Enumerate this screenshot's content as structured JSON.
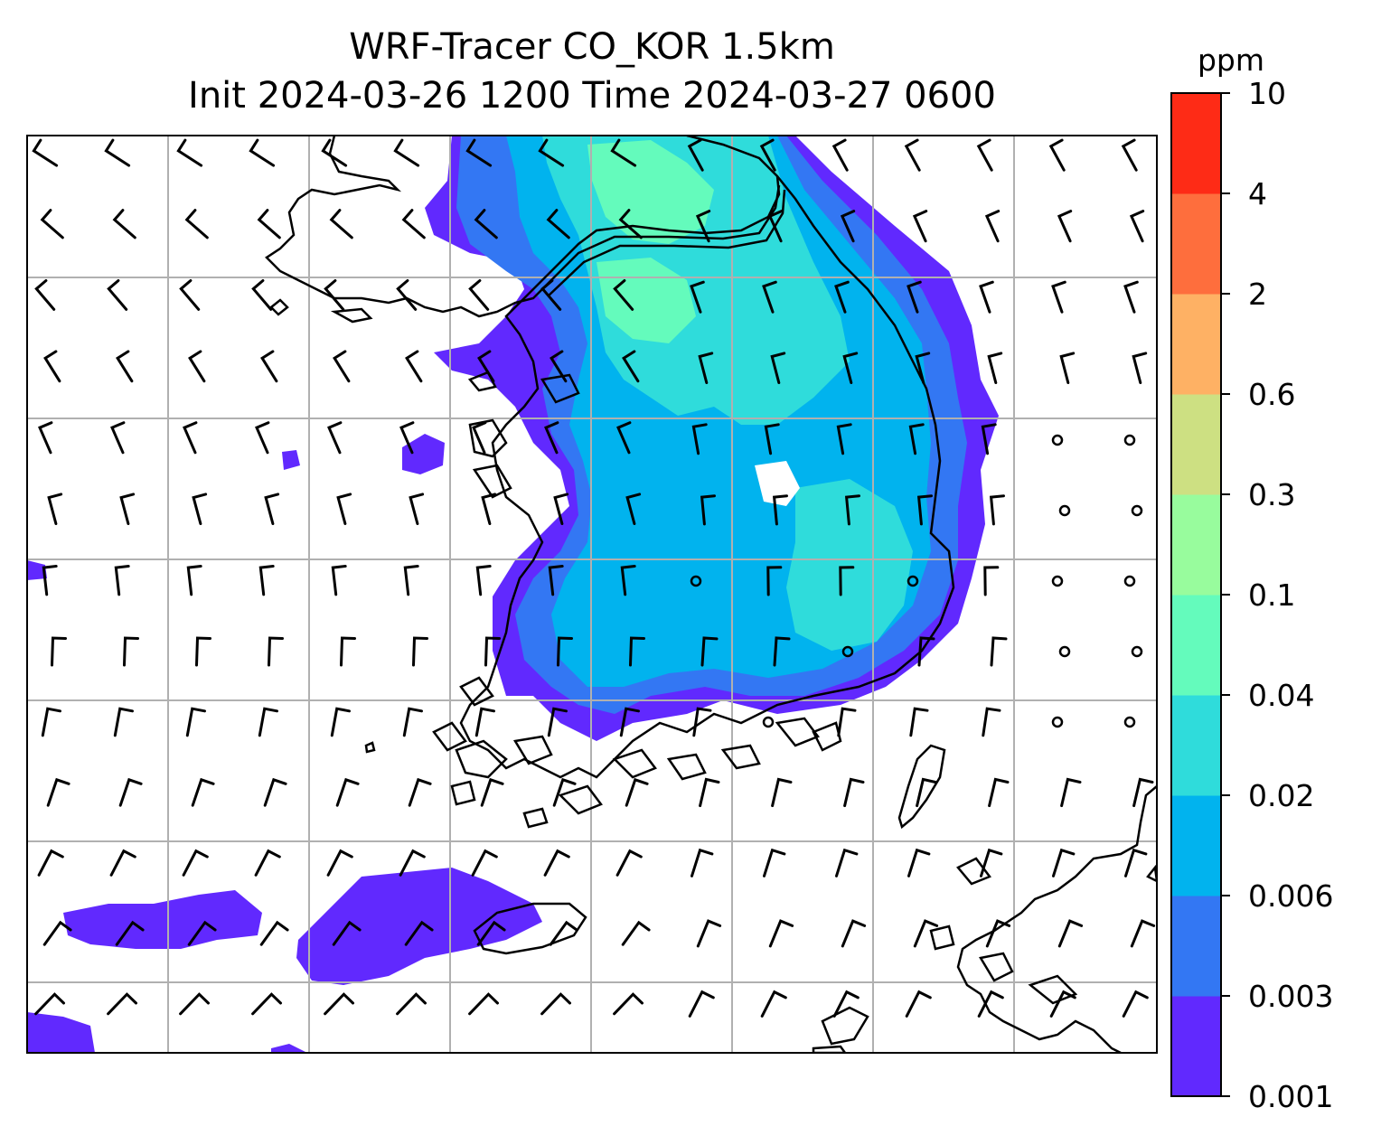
{
  "title": {
    "line1": "WRF-Tracer CO_KOR 1.5km",
    "line2": "Init 2024-03-26 1200 Time 2024-03-27 0600"
  },
  "colorbar": {
    "unit": "ppm",
    "levels": [
      "0.001",
      "0.003",
      "0.006",
      "0.02",
      "0.04",
      "0.1",
      "0.3",
      "0.6",
      "2",
      "4",
      "10"
    ],
    "colors": [
      "#6129fe",
      "#3377f3",
      "#01b3ee",
      "#2fdcdb",
      "#64fbbc",
      "#98fc9d",
      "#cde082",
      "#feb164",
      "#fe6e3d",
      "#fe2b16"
    ]
  },
  "map": {
    "grid": "on",
    "coastline_color": "#000000",
    "gridline_color": "#b0b0b0",
    "wind_barb_color": "#000000"
  }
}
